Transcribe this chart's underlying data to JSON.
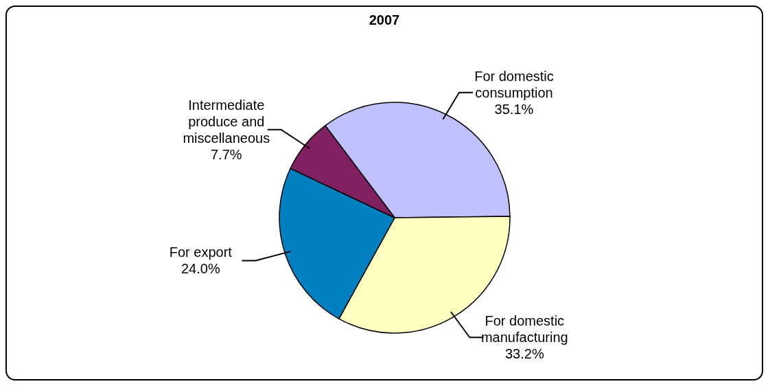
{
  "chart_data": {
    "type": "pie",
    "title": "2007",
    "categories": [
      "For domestic consumption",
      "For domestic manufacturing",
      "For export",
      "Intermediate produce and miscellaneous"
    ],
    "values": [
      35.1,
      33.2,
      24.0,
      7.7
    ],
    "value_labels": [
      "35.1%",
      "33.2%",
      "24.0%",
      "7.7%"
    ],
    "colors": [
      "#c0c0ff",
      "#ffffc0",
      "#0080c0",
      "#802060"
    ]
  }
}
